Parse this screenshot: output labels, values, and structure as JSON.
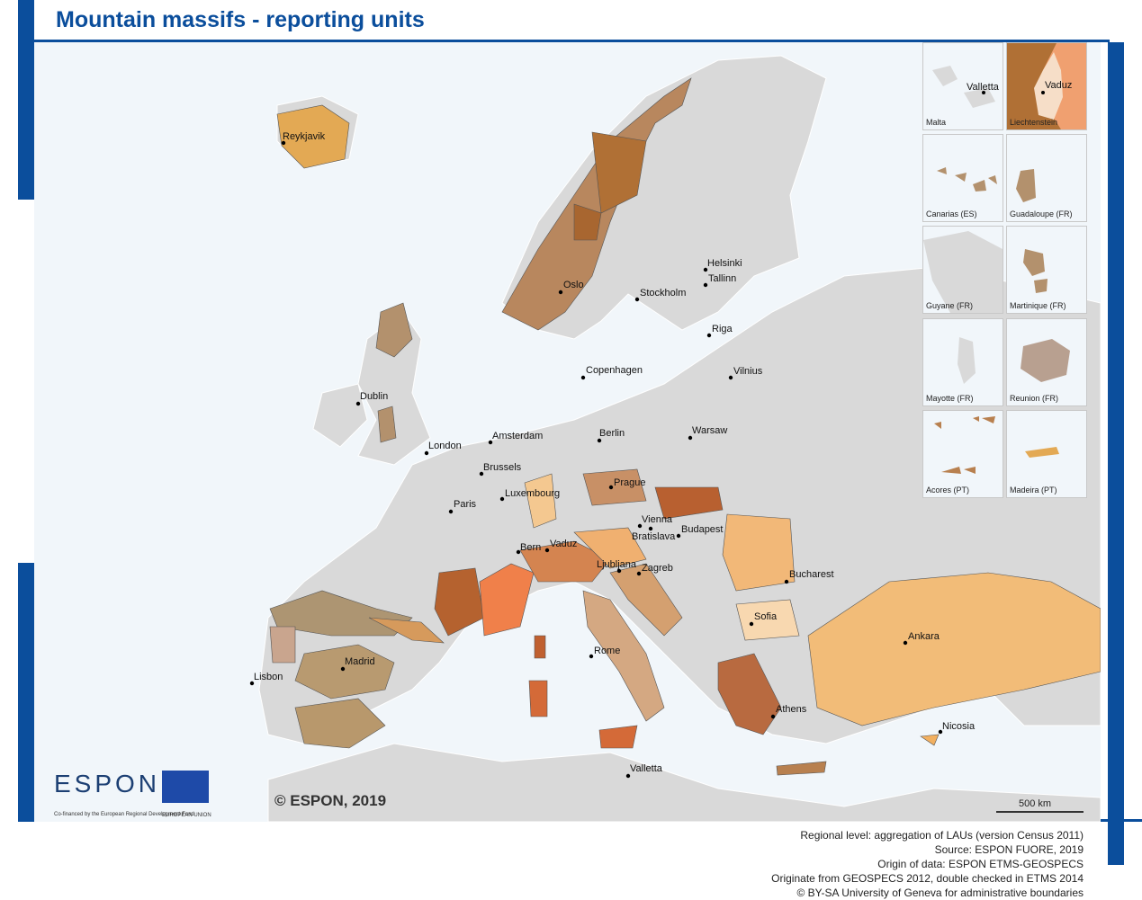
{
  "title": "Mountain massifs - reporting units",
  "copyright": "© ESPON, 2019",
  "scale": "500 km",
  "logo": {
    "espon": "ESPON",
    "espon_sub": "Co-financed by the European Regional Development Fund",
    "eu_sub": "EUROPEAN UNION"
  },
  "footer": [
    "Regional level: aggregation of LAUs (version Census 2011)",
    "Source: ESPON FUORE, 2019",
    "Origin of data: ESPON ETMS-GEOSPECS",
    "Originate from GEOSPECS 2012, double checked in ETMS 2014",
    "© BY-SA University of Geneva for administrative boundaries"
  ],
  "colors": {
    "land": "#d9d9d9",
    "sea": "#f1f6fa",
    "brand": "#0b4e9c"
  },
  "cities": [
    "Reykjavik",
    "Oslo",
    "Stockholm",
    "Helsinki",
    "Tallinn",
    "Riga",
    "Vilnius",
    "Copenhagen",
    "Dublin",
    "London",
    "Amsterdam",
    "Berlin",
    "Warsaw",
    "Brussels",
    "Luxembourg",
    "Prague",
    "Paris",
    "Vienna",
    "Bratislava",
    "Budapest",
    "Bern",
    "Vaduz",
    "Ljubljana",
    "Zagreb",
    "Bucharest",
    "Sofia",
    "Madrid",
    "Lisbon",
    "Rome",
    "Ankara",
    "Athens",
    "Nicosia",
    "Valletta"
  ],
  "insets": [
    {
      "label": "Malta",
      "city": "Valletta"
    },
    {
      "label": "Liechtenstein",
      "city": "Vaduz"
    },
    {
      "label": "Canarias (ES)"
    },
    {
      "label": "Guadaloupe (FR)"
    },
    {
      "label": "Guyane (FR)"
    },
    {
      "label": "Martinique (FR)"
    },
    {
      "label": "Mayotte (FR)"
    },
    {
      "label": "Reunion (FR)"
    },
    {
      "label": "Acores (PT)"
    },
    {
      "label": "Madeira (PT)"
    }
  ]
}
